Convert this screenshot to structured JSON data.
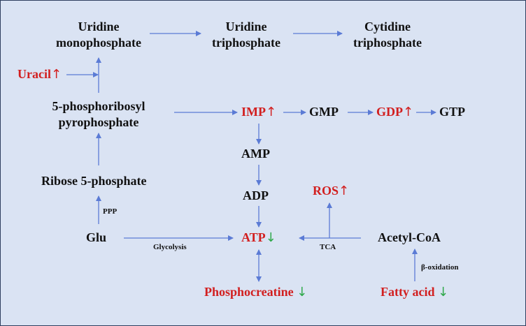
{
  "colors": {
    "background": "#dae3f3",
    "arrow": "#5b7bd5",
    "highlight": "#d21f1f",
    "increase": "#d21f1f",
    "decrease": "#2ea84a",
    "text": "#111111"
  },
  "indicators": {
    "up": "↑",
    "down": "↓"
  },
  "nodes": {
    "ump_line1": "Uridine",
    "ump_line2": "monophosphate",
    "utp_line1": "Uridine",
    "utp_line2": "triphosphate",
    "ctp_line1": "Cytidine",
    "ctp_line2": "triphosphate",
    "uracil": "Uracil",
    "prpp_line1": "5-phosphoribosyl",
    "prpp_line2": "pyrophosphate",
    "imp": "IMP",
    "gmp": "GMP",
    "gdp": "GDP",
    "gtp": "GTP",
    "amp": "AMP",
    "adp": "ADP",
    "ros": "ROS",
    "ribose5p": "Ribose 5-phosphate",
    "glu": "Glu",
    "atp": "ATP",
    "acetyl_coa": "Acetyl-CoA",
    "phosphocreatine": "Phosphocreatine",
    "fatty_acid": "Fatty acid"
  },
  "edge_labels": {
    "ppp": "PPP",
    "glycolysis": "Glycolysis",
    "tca": "TCA",
    "beta_oxidation": "β-oxidation"
  }
}
